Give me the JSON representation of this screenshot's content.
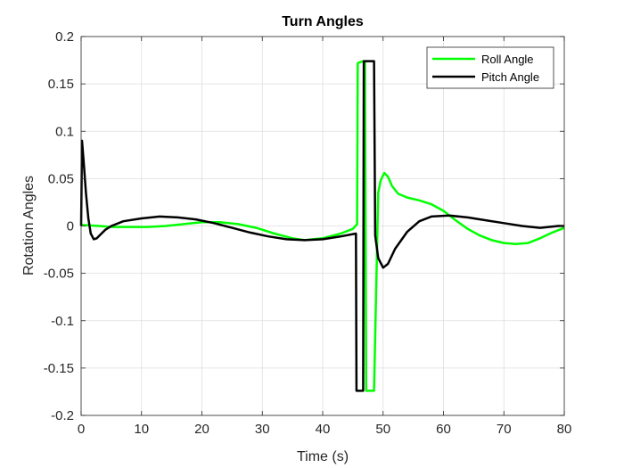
{
  "chart_data": {
    "type": "line",
    "title": "Turn Angles",
    "xlabel": "Time (s)",
    "ylabel": "Rotation Angles",
    "xlim": [
      0,
      80
    ],
    "ylim": [
      -0.2,
      0.2
    ],
    "x_ticks": [
      0,
      10,
      20,
      30,
      40,
      50,
      60,
      70,
      80
    ],
    "y_ticks": [
      -0.2,
      -0.15,
      -0.1,
      -0.05,
      0,
      0.05,
      0.1,
      0.15,
      0.2
    ],
    "x_tick_labels": [
      "0",
      "10",
      "20",
      "30",
      "40",
      "50",
      "60",
      "70",
      "80"
    ],
    "y_tick_labels": [
      "-0.2",
      "-0.15",
      "-0.1",
      "-0.05",
      "0",
      "0.05",
      "0.1",
      "0.15",
      "0.2"
    ],
    "grid": true,
    "legend_position": "top-right",
    "series": [
      {
        "name": "Roll Angle",
        "color": "#00ff00",
        "points": [
          [
            0,
            0.001
          ],
          [
            3,
            0.0
          ],
          [
            5,
            -0.001
          ],
          [
            8,
            -0.001
          ],
          [
            11,
            -0.001
          ],
          [
            14,
            0.0
          ],
          [
            17,
            0.002
          ],
          [
            20,
            0.004
          ],
          [
            23,
            0.004
          ],
          [
            26,
            0.002
          ],
          [
            29,
            -0.002
          ],
          [
            32,
            -0.008
          ],
          [
            35,
            -0.013
          ],
          [
            37,
            -0.015
          ],
          [
            40,
            -0.013
          ],
          [
            43,
            -0.008
          ],
          [
            45,
            -0.003
          ],
          [
            45.7,
            0.002
          ],
          [
            45.8,
            0.172
          ],
          [
            46.7,
            0.174
          ],
          [
            47.0,
            0.173
          ],
          [
            47.2,
            -0.174
          ],
          [
            48.5,
            -0.174
          ],
          [
            49.2,
            0.035
          ],
          [
            49.6,
            0.048
          ],
          [
            50.2,
            0.056
          ],
          [
            50.8,
            0.052
          ],
          [
            51.5,
            0.042
          ],
          [
            52.5,
            0.034
          ],
          [
            54,
            0.03
          ],
          [
            56,
            0.027
          ],
          [
            58,
            0.023
          ],
          [
            60,
            0.016
          ],
          [
            62,
            0.006
          ],
          [
            64,
            -0.003
          ],
          [
            66,
            -0.01
          ],
          [
            68,
            -0.015
          ],
          [
            70,
            -0.018
          ],
          [
            72,
            -0.019
          ],
          [
            74,
            -0.018
          ],
          [
            76,
            -0.013
          ],
          [
            78,
            -0.007
          ],
          [
            80,
            -0.002
          ]
        ]
      },
      {
        "name": "Pitch Angle",
        "color": "#000000",
        "points": [
          [
            0,
            0.0
          ],
          [
            0.15,
            0.09
          ],
          [
            0.4,
            0.07
          ],
          [
            0.8,
            0.035
          ],
          [
            1.2,
            0.008
          ],
          [
            1.6,
            -0.008
          ],
          [
            2.1,
            -0.014
          ],
          [
            2.6,
            -0.013
          ],
          [
            3.2,
            -0.009
          ],
          [
            4,
            -0.004
          ],
          [
            5,
            0.0
          ],
          [
            7,
            0.005
          ],
          [
            10,
            0.008
          ],
          [
            13,
            0.01
          ],
          [
            16,
            0.009
          ],
          [
            19,
            0.007
          ],
          [
            22,
            0.003
          ],
          [
            25,
            -0.002
          ],
          [
            28,
            -0.007
          ],
          [
            31,
            -0.011
          ],
          [
            34,
            -0.014
          ],
          [
            37,
            -0.015
          ],
          [
            40,
            -0.014
          ],
          [
            43,
            -0.011
          ],
          [
            45.5,
            -0.008
          ],
          [
            45.6,
            -0.174
          ],
          [
            46.7,
            -0.174
          ],
          [
            46.8,
            0.174
          ],
          [
            48.5,
            0.174
          ],
          [
            48.7,
            -0.01
          ],
          [
            49.2,
            -0.034
          ],
          [
            50.0,
            -0.044
          ],
          [
            50.8,
            -0.04
          ],
          [
            52,
            -0.024
          ],
          [
            54,
            -0.006
          ],
          [
            56,
            0.005
          ],
          [
            58,
            0.01
          ],
          [
            61,
            0.011
          ],
          [
            64,
            0.009
          ],
          [
            67,
            0.006
          ],
          [
            70,
            0.003
          ],
          [
            73,
            0.0
          ],
          [
            76,
            -0.002
          ],
          [
            79,
            0.0
          ],
          [
            80,
            0.0
          ]
        ]
      }
    ]
  }
}
